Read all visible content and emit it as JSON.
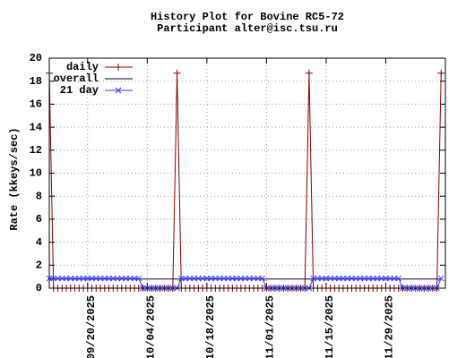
{
  "chart_data": {
    "type": "line",
    "title": "History Plot for Bovine RC5-72",
    "subtitle": "Participant alter@isc.tsu.ru",
    "y_label": "Rate (kkeys/sec)",
    "x": [
      "09/11/2025",
      "09/12/2025",
      "09/13/2025",
      "09/14/2025",
      "09/15/2025",
      "09/16/2025",
      "09/17/2025",
      "09/18/2025",
      "09/19/2025",
      "09/20/2025",
      "09/21/2025",
      "09/22/2025",
      "09/23/2025",
      "09/24/2025",
      "09/25/2025",
      "09/26/2025",
      "09/27/2025",
      "09/28/2025",
      "09/29/2025",
      "09/30/2025",
      "10/01/2025",
      "10/02/2025",
      "10/03/2025",
      "10/04/2025",
      "10/05/2025",
      "10/06/2025",
      "10/07/2025",
      "10/08/2025",
      "10/09/2025",
      "10/10/2025",
      "10/11/2025",
      "10/12/2025",
      "10/13/2025",
      "10/14/2025",
      "10/15/2025",
      "10/16/2025",
      "10/17/2025",
      "10/18/2025",
      "10/19/2025",
      "10/20/2025",
      "10/21/2025",
      "10/22/2025",
      "10/23/2025",
      "10/24/2025",
      "10/25/2025",
      "10/26/2025",
      "10/27/2025",
      "10/28/2025",
      "10/29/2025",
      "10/30/2025",
      "10/31/2025",
      "11/01/2025",
      "11/02/2025",
      "11/03/2025",
      "11/04/2025",
      "11/05/2025",
      "11/06/2025",
      "11/07/2025",
      "11/08/2025",
      "11/09/2025",
      "11/10/2025",
      "11/11/2025",
      "11/12/2025",
      "11/13/2025",
      "11/14/2025",
      "11/15/2025",
      "11/16/2025",
      "11/17/2025",
      "11/18/2025",
      "11/19/2025",
      "11/20/2025",
      "11/21/2025",
      "11/22/2025",
      "11/23/2025",
      "11/24/2025",
      "11/25/2025",
      "11/26/2025",
      "11/27/2025",
      "11/28/2025",
      "11/29/2025",
      "11/30/2025",
      "12/01/2025",
      "12/02/2025",
      "12/03/2025",
      "12/04/2025",
      "12/05/2025",
      "12/06/2025",
      "12/07/2025",
      "12/08/2025",
      "12/09/2025",
      "12/10/2025",
      "12/11/2025",
      "12/12/2025"
    ],
    "series": [
      {
        "name": "daily",
        "color": "#8b0000",
        "marker": "plus",
        "values": [
          18.7,
          0,
          0,
          0,
          0,
          0,
          0,
          0,
          0,
          0,
          0,
          0,
          0,
          0,
          0,
          0,
          0,
          0,
          0,
          0,
          0,
          0,
          0,
          0,
          0,
          0,
          0,
          0,
          0,
          0,
          18.7,
          0,
          0,
          0,
          0,
          0,
          0,
          0,
          0,
          0,
          0,
          0,
          0,
          0,
          0,
          0,
          0,
          0,
          0,
          0,
          0,
          0,
          0,
          0,
          0,
          0,
          0,
          0,
          0,
          0,
          0,
          18.7,
          0,
          0,
          0,
          0,
          0,
          0,
          0,
          0,
          0,
          0,
          0,
          0,
          0,
          0,
          0,
          0,
          0,
          0,
          0,
          0,
          0,
          0,
          0,
          0,
          0,
          0,
          0,
          0,
          0,
          0,
          18.7
        ]
      },
      {
        "name": "overall",
        "color": "#000050",
        "x": [
          "09/11/2025",
          "12/12/2025"
        ],
        "values": [
          0.8,
          0.8
        ]
      },
      {
        "name": "21 day",
        "color": "#3838ff",
        "marker": "cross",
        "values": [
          0.85,
          0.85,
          0.85,
          0.85,
          0.85,
          0.85,
          0.85,
          0.85,
          0.85,
          0.85,
          0.85,
          0.85,
          0.85,
          0.85,
          0.85,
          0.85,
          0.85,
          0.85,
          0.85,
          0.85,
          0.85,
          0.85,
          0,
          0,
          0,
          0,
          0,
          0,
          0,
          0,
          0,
          0.85,
          0.85,
          0.85,
          0.85,
          0.85,
          0.85,
          0.85,
          0.85,
          0.85,
          0.85,
          0.85,
          0.85,
          0.85,
          0.85,
          0.85,
          0.85,
          0.85,
          0.85,
          0.85,
          0.85,
          0,
          0,
          0,
          0,
          0,
          0,
          0,
          0,
          0,
          0,
          0,
          0.85,
          0.85,
          0.85,
          0.85,
          0.85,
          0.85,
          0.85,
          0.85,
          0.85,
          0.85,
          0.85,
          0.85,
          0.85,
          0.85,
          0.85,
          0.85,
          0.85,
          0.85,
          0.85,
          0.85,
          0.85,
          0,
          0,
          0,
          0,
          0,
          0,
          0,
          0,
          0,
          0.85
        ]
      }
    ],
    "xlim": [
      "09/11/2025",
      "12/13/2025"
    ],
    "xticks": [
      "09/20/2025",
      "10/04/2025",
      "10/18/2025",
      "11/01/2025",
      "11/15/2025",
      "11/29/2025"
    ],
    "ylim": [
      0,
      20
    ],
    "yticks": [
      0,
      2,
      4,
      6,
      8,
      10,
      12,
      14,
      16,
      18,
      20
    ],
    "grid": true,
    "legend": "top left"
  }
}
